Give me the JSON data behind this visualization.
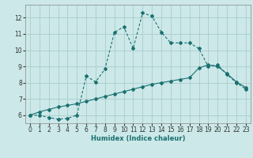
{
  "xlabel": "Humidex (Indice chaleur)",
  "ylabel": "",
  "bg_color": "#cce8e8",
  "grid_color": "#aacccc",
  "line_color": "#1a7070",
  "xlim": [
    -0.5,
    23.5
  ],
  "ylim": [
    5.5,
    12.8
  ],
  "yticks": [
    6,
    7,
    8,
    9,
    10,
    11,
    12
  ],
  "xticks": [
    0,
    1,
    2,
    3,
    4,
    5,
    6,
    7,
    8,
    9,
    10,
    11,
    12,
    13,
    14,
    15,
    16,
    17,
    18,
    19,
    20,
    21,
    22,
    23
  ],
  "line1_x": [
    0,
    1,
    2,
    3,
    4,
    5,
    6,
    7,
    8,
    9,
    10,
    11,
    12,
    13,
    14,
    15,
    16,
    17,
    18,
    19,
    20,
    21,
    22,
    23
  ],
  "line1_y": [
    6.0,
    6.0,
    5.85,
    5.75,
    5.8,
    6.0,
    8.4,
    8.05,
    8.85,
    11.1,
    11.45,
    10.1,
    12.3,
    12.1,
    11.1,
    10.45,
    10.45,
    10.45,
    10.1,
    9.0,
    9.1,
    8.5,
    8.0,
    7.6
  ],
  "line2_x": [
    0,
    1,
    2,
    3,
    4,
    5,
    6,
    7,
    8,
    9,
    10,
    11,
    12,
    13,
    14,
    15,
    16,
    17,
    18,
    19,
    20,
    21,
    22,
    23
  ],
  "line2_y": [
    6.0,
    6.2,
    6.35,
    6.5,
    6.6,
    6.7,
    6.85,
    7.0,
    7.15,
    7.3,
    7.45,
    7.6,
    7.75,
    7.9,
    8.0,
    8.1,
    8.2,
    8.3,
    8.9,
    9.1,
    9.0,
    8.55,
    8.05,
    7.7
  ],
  "tick_fontsize": 5.5,
  "xlabel_fontsize": 6.0
}
